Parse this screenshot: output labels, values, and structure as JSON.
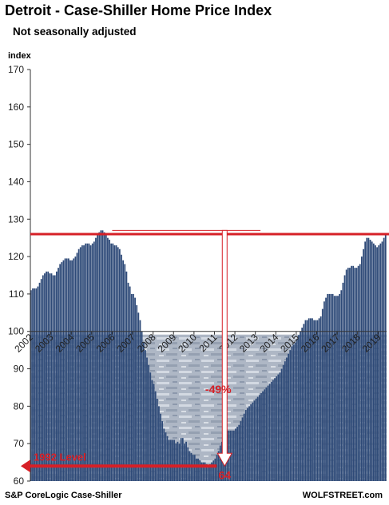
{
  "title": "Detroit - Case-Shiller Home Price Index",
  "subtitle": "Not seasonally adjusted",
  "source": "S&P CoreLogic Case-Shiller",
  "brand": "WOLFSTREET.com",
  "colors": {
    "bar": "#2e4a78",
    "reference_line": "#d62027",
    "arrow": "#d62027",
    "annotation_text": "#d62027"
  },
  "chart_data": {
    "type": "bar",
    "title": "Detroit - Case-Shiller Home Price Index",
    "subtitle": "Not seasonally adjusted",
    "ylabel": "index",
    "xlabel": "",
    "ylim": [
      60,
      170
    ],
    "yticks": [
      60,
      70,
      80,
      90,
      100,
      110,
      120,
      130,
      140,
      150,
      160,
      170
    ],
    "xticks": [
      "2002",
      "2003",
      "2004",
      "2005",
      "2006",
      "2007",
      "2008",
      "2009",
      "2010",
      "2011",
      "2012",
      "2013",
      "2014",
      "2015",
      "2016",
      "2017",
      "2018",
      "2019"
    ],
    "grid": false,
    "x_start": "2002-01",
    "frequency": "monthly",
    "values": [
      111,
      111.5,
      111.5,
      111.5,
      112,
      113,
      114,
      115,
      115.5,
      116,
      116,
      115.5,
      115.5,
      115,
      115,
      116,
      117,
      118,
      118.5,
      119,
      119.5,
      119.5,
      119.5,
      119,
      119,
      119.5,
      120,
      121,
      122,
      122.5,
      123,
      123,
      123.5,
      123.5,
      123.5,
      123,
      123.5,
      124,
      125,
      126,
      126.5,
      127,
      127,
      126.5,
      126,
      125,
      124.5,
      123.5,
      123.5,
      123,
      123,
      122.5,
      122,
      120.5,
      119,
      118,
      116,
      113,
      112,
      110,
      110,
      109,
      107,
      105,
      103,
      100,
      97,
      95,
      93,
      91,
      89,
      87,
      86,
      84,
      82,
      80,
      78,
      76,
      74,
      73,
      72,
      71,
      71,
      71,
      71,
      70,
      70.5,
      70,
      71.5,
      71.5,
      70,
      70.5,
      69,
      68,
      67.5,
      67,
      67,
      66,
      66,
      65.5,
      65,
      65,
      65,
      64.5,
      64,
      64.5,
      65,
      65.5,
      66,
      67,
      68,
      69.5,
      70.5,
      72,
      73,
      73.5,
      73.5,
      73.5,
      73.5,
      73.5,
      74,
      74.5,
      75,
      76,
      77,
      78,
      79,
      79.5,
      80,
      80.5,
      81,
      81.5,
      82,
      82.5,
      83,
      83.5,
      84,
      84.5,
      85,
      85.5,
      86,
      86.5,
      87,
      87.5,
      88,
      88.5,
      89,
      90,
      91,
      92,
      93,
      94,
      95,
      96,
      96.5,
      97,
      98,
      99,
      100,
      101,
      102,
      103,
      103,
      103.5,
      103.5,
      103.5,
      103,
      103,
      103,
      103.5,
      104,
      106,
      108,
      109,
      110,
      110,
      110,
      110,
      109.5,
      109.5,
      109.5,
      110,
      111,
      113,
      115,
      116.5,
      117,
      117,
      117.5,
      117.5,
      117,
      117,
      117.5,
      118,
      120,
      122,
      124,
      125,
      125,
      124.5,
      124,
      123.5,
      123,
      122.5,
      123,
      123.5,
      124,
      125,
      126
    ],
    "annotations": [
      {
        "type": "horizontal_line",
        "label": "",
        "y": 126
      },
      {
        "type": "peak_to_trough_arrow",
        "from": 127,
        "to": 64,
        "label": "-49%"
      },
      {
        "type": "value_label",
        "label": "64",
        "y": 64
      },
      {
        "type": "level_arrow",
        "label": "1992 Level",
        "y": 64
      }
    ]
  }
}
